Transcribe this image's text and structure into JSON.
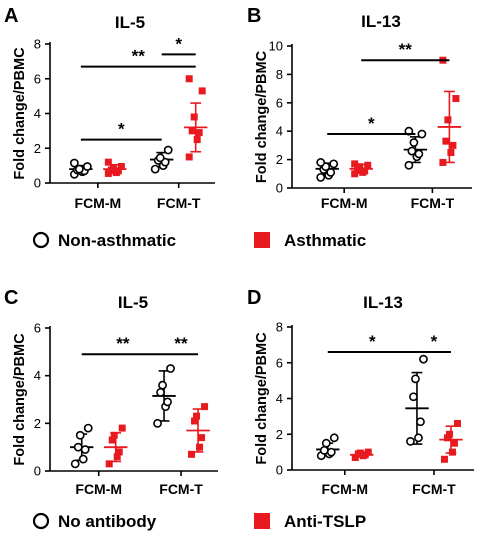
{
  "legend_top": {
    "series1": "Non-asthmatic",
    "series2": "Asthmatic"
  },
  "legend_bottom": {
    "series1": "No antibody",
    "series2": "Anti-TSLP"
  },
  "colors": {
    "open": "#000000",
    "filled": "#e8191f"
  },
  "chart_data": [
    {
      "panel": "A",
      "title": "IL-5",
      "type": "scatter",
      "ylabel": "Fold change/PBMC",
      "ylim": [
        0,
        8
      ],
      "yticks": [
        0,
        2,
        4,
        6,
        8
      ],
      "categories": [
        "FCM-M",
        "FCM-T"
      ],
      "series": [
        {
          "name": "Non-asthmatic",
          "marker": "open-circle",
          "groups": [
            {
              "points": [
                0.5,
                0.65,
                0.7,
                0.75,
                0.8,
                0.95,
                1.15
              ],
              "mean": 0.8,
              "sd": 0.2
            },
            {
              "points": [
                0.8,
                1.0,
                1.2,
                1.3,
                1.45,
                1.9
              ],
              "mean": 1.35,
              "sd": 0.4
            }
          ]
        },
        {
          "name": "Asthmatic",
          "marker": "filled-square",
          "groups": [
            {
              "points": [
                0.55,
                0.6,
                0.7,
                0.75,
                0.85,
                0.95,
                1.2
              ],
              "mean": 0.8,
              "sd": 0.25
            },
            {
              "points": [
                1.5,
                2.5,
                2.9,
                3.0,
                3.8,
                5.3,
                6.0
              ],
              "mean": 3.2,
              "sd": 1.4
            }
          ]
        }
      ],
      "significance": [
        {
          "from_category": "FCM-M",
          "to_category": "FCM-T",
          "level": 2.5,
          "label": "*"
        },
        {
          "from_category": "FCM-M",
          "to_category": "FCM-T",
          "level": 6.7,
          "label": "**"
        },
        {
          "from_category": "FCM-T",
          "to_category": "FCM-T",
          "level": 7.4,
          "label": "*"
        }
      ]
    },
    {
      "panel": "B",
      "title": "IL-13",
      "type": "scatter",
      "ylabel": "Fold change/PBMC",
      "ylim": [
        0,
        10
      ],
      "yticks": [
        0,
        2,
        4,
        6,
        8,
        10
      ],
      "categories": [
        "FCM-M",
        "FCM-T"
      ],
      "series": [
        {
          "name": "Non-asthmatic",
          "marker": "open-circle",
          "groups": [
            {
              "points": [
                0.75,
                0.9,
                1.1,
                1.3,
                1.5,
                1.7,
                1.8
              ],
              "mean": 1.35,
              "sd": 0.4
            },
            {
              "points": [
                1.6,
                2.2,
                2.4,
                2.6,
                3.2,
                3.8,
                4.0
              ],
              "mean": 2.7,
              "sd": 0.9
            }
          ]
        },
        {
          "name": "Asthmatic",
          "marker": "filled-square",
          "groups": [
            {
              "points": [
                1.0,
                1.1,
                1.2,
                1.3,
                1.5,
                1.6,
                1.7
              ],
              "mean": 1.35,
              "sd": 0.3
            },
            {
              "points": [
                1.8,
                2.5,
                3.0,
                3.3,
                4.8,
                6.3,
                9.0
              ],
              "mean": 4.3,
              "sd": 2.5
            }
          ]
        }
      ],
      "significance": [
        {
          "from_category": "FCM-M",
          "to_category": "FCM-T",
          "level": 3.8,
          "label": "*"
        },
        {
          "from_category": "FCM-M",
          "to_category": "FCM-T",
          "level": 9.0,
          "label": "**"
        }
      ]
    },
    {
      "panel": "C",
      "title": "IL-5",
      "type": "scatter",
      "ylabel": "Fold change/PBMC",
      "ylim": [
        0,
        6
      ],
      "yticks": [
        0,
        2,
        4,
        6
      ],
      "categories": [
        "FCM-M",
        "FCM-T"
      ],
      "series": [
        {
          "name": "No antibody",
          "marker": "open-circle",
          "groups": [
            {
              "points": [
                0.3,
                0.5,
                0.9,
                1.0,
                1.5,
                1.8
              ],
              "mean": 1.0,
              "sd": 0.55
            },
            {
              "points": [
                2.0,
                2.7,
                2.9,
                3.3,
                3.6,
                4.3
              ],
              "mean": 3.15,
              "sd": 1.05
            }
          ]
        },
        {
          "name": "Anti-TSLP",
          "marker": "filled-square",
          "groups": [
            {
              "points": [
                0.3,
                0.6,
                0.8,
                1.3,
                1.5,
                1.8
              ],
              "mean": 1.0,
              "sd": 0.6
            },
            {
              "points": [
                0.7,
                1.0,
                1.4,
                2.1,
                2.3,
                2.7
              ],
              "mean": 1.7,
              "sd": 0.9
            }
          ]
        }
      ],
      "significance": [
        {
          "from_category": "FCM-M",
          "to_category": "FCM-T",
          "level": 4.9,
          "label": "**"
        },
        {
          "from_category": "FCM-T",
          "to_category": "FCM-T",
          "level": 4.9,
          "label": "**"
        }
      ]
    },
    {
      "panel": "D",
      "title": "IL-13",
      "type": "scatter",
      "ylabel": "Fold change/PBMC",
      "ylim": [
        0,
        8
      ],
      "yticks": [
        0,
        2,
        4,
        6,
        8
      ],
      "categories": [
        "FCM-M",
        "FCM-T"
      ],
      "series": [
        {
          "name": "No antibody",
          "marker": "open-circle",
          "groups": [
            {
              "points": [
                0.8,
                0.9,
                1.0,
                1.1,
                1.5,
                1.8
              ],
              "mean": 1.15,
              "sd": 0.35
            },
            {
              "points": [
                1.6,
                1.8,
                2.7,
                4.1,
                5.1,
                6.2
              ],
              "mean": 3.45,
              "sd": 2.0
            }
          ]
        },
        {
          "name": "Anti-TSLP",
          "marker": "filled-square",
          "groups": [
            {
              "points": [
                0.7,
                0.8,
                0.85,
                0.9,
                0.95,
                1.0
              ],
              "mean": 0.85,
              "sd": 0.12
            },
            {
              "points": [
                0.6,
                1.0,
                1.5,
                1.8,
                2.0,
                2.6
              ],
              "mean": 1.7,
              "sd": 0.75
            }
          ]
        }
      ],
      "significance": [
        {
          "from_category": "FCM-M",
          "to_category": "FCM-T",
          "level": 6.6,
          "label": "*"
        },
        {
          "from_category": "FCM-T",
          "to_category": "FCM-T",
          "level": 6.6,
          "label": "*"
        }
      ]
    }
  ]
}
